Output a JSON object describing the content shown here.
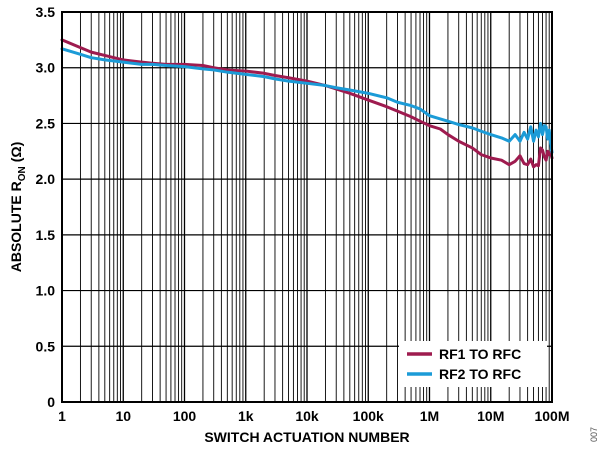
{
  "chart_data": {
    "type": "line",
    "title": "",
    "xlabel": "SWITCH ACTUATION NUMBER",
    "ylabel_main": "ABSOLUTE R",
    "ylabel_sub": "ON",
    "ylabel_unit": "(Ω)",
    "x_scale": "log",
    "xlim": [
      1,
      100000000
    ],
    "ylim": [
      0,
      3.5
    ],
    "grid": true,
    "legend_position": "bottom-right",
    "x_ticks": [
      {
        "value": 1,
        "label": "1"
      },
      {
        "value": 10,
        "label": "10"
      },
      {
        "value": 100,
        "label": "100"
      },
      {
        "value": 1000,
        "label": "1k"
      },
      {
        "value": 10000,
        "label": "10k"
      },
      {
        "value": 100000,
        "label": "100k"
      },
      {
        "value": 1000000,
        "label": "1M"
      },
      {
        "value": 10000000,
        "label": "10M"
      },
      {
        "value": 100000000,
        "label": "100M"
      }
    ],
    "y_ticks": [
      {
        "value": 0,
        "label": "0"
      },
      {
        "value": 0.5,
        "label": "0.5"
      },
      {
        "value": 1.0,
        "label": "1.0"
      },
      {
        "value": 1.5,
        "label": "1.5"
      },
      {
        "value": 2.0,
        "label": "2.0"
      },
      {
        "value": 2.5,
        "label": "2.5"
      },
      {
        "value": 3.0,
        "label": "3.0"
      },
      {
        "value": 3.5,
        "label": "3.5"
      }
    ],
    "series": [
      {
        "name": "RF1 TO RFC",
        "color": "#9e1b4f",
        "points": [
          [
            1,
            3.25
          ],
          [
            2,
            3.18
          ],
          [
            3,
            3.14
          ],
          [
            5,
            3.11
          ],
          [
            10,
            3.07
          ],
          [
            20,
            3.05
          ],
          [
            30,
            3.04
          ],
          [
            50,
            3.03
          ],
          [
            100,
            3.03
          ],
          [
            200,
            3.02
          ],
          [
            300,
            3.0
          ],
          [
            500,
            2.98
          ],
          [
            1000,
            2.97
          ],
          [
            2000,
            2.95
          ],
          [
            3000,
            2.93
          ],
          [
            5000,
            2.91
          ],
          [
            10000,
            2.88
          ],
          [
            20000,
            2.84
          ],
          [
            30000,
            2.81
          ],
          [
            50000,
            2.77
          ],
          [
            100000,
            2.71
          ],
          [
            200000,
            2.65
          ],
          [
            300000,
            2.61
          ],
          [
            500000,
            2.56
          ],
          [
            700000,
            2.52
          ],
          [
            1000000,
            2.48
          ],
          [
            1500000,
            2.45
          ],
          [
            2000000,
            2.4
          ],
          [
            3000000,
            2.34
          ],
          [
            5000000,
            2.28
          ],
          [
            7000000,
            2.22
          ],
          [
            10000000,
            2.19
          ],
          [
            15000000,
            2.17
          ],
          [
            20000000,
            2.13
          ],
          [
            25000000,
            2.16
          ],
          [
            30000000,
            2.21
          ],
          [
            35000000,
            2.14
          ],
          [
            40000000,
            2.13
          ],
          [
            45000000,
            2.18
          ],
          [
            50000000,
            2.11
          ],
          [
            55000000,
            2.13
          ],
          [
            60000000,
            2.12
          ],
          [
            65000000,
            2.28
          ],
          [
            70000000,
            2.26
          ],
          [
            75000000,
            2.2
          ],
          [
            80000000,
            2.17
          ],
          [
            85000000,
            2.25
          ],
          [
            90000000,
            2.22
          ],
          [
            95000000,
            2.24
          ],
          [
            100000000,
            2.19
          ]
        ]
      },
      {
        "name": "RF2 TO RFC",
        "color": "#1b9bd7",
        "points": [
          [
            1,
            3.17
          ],
          [
            2,
            3.12
          ],
          [
            3,
            3.09
          ],
          [
            5,
            3.07
          ],
          [
            10,
            3.05
          ],
          [
            20,
            3.03
          ],
          [
            30,
            3.03
          ],
          [
            50,
            3.02
          ],
          [
            100,
            3.01
          ],
          [
            200,
            2.99
          ],
          [
            300,
            2.98
          ],
          [
            500,
            2.96
          ],
          [
            1000,
            2.94
          ],
          [
            2000,
            2.92
          ],
          [
            3000,
            2.9
          ],
          [
            5000,
            2.88
          ],
          [
            10000,
            2.86
          ],
          [
            20000,
            2.84
          ],
          [
            30000,
            2.82
          ],
          [
            50000,
            2.8
          ],
          [
            100000,
            2.77
          ],
          [
            200000,
            2.73
          ],
          [
            300000,
            2.69
          ],
          [
            500000,
            2.66
          ],
          [
            700000,
            2.63
          ],
          [
            1000000,
            2.57
          ],
          [
            1500000,
            2.54
          ],
          [
            2000000,
            2.52
          ],
          [
            3000000,
            2.49
          ],
          [
            5000000,
            2.46
          ],
          [
            7000000,
            2.43
          ],
          [
            10000000,
            2.4
          ],
          [
            15000000,
            2.37
          ],
          [
            20000000,
            2.34
          ],
          [
            25000000,
            2.4
          ],
          [
            30000000,
            2.34
          ],
          [
            35000000,
            2.42
          ],
          [
            40000000,
            2.36
          ],
          [
            45000000,
            2.47
          ],
          [
            50000000,
            2.34
          ],
          [
            55000000,
            2.44
          ],
          [
            60000000,
            2.38
          ],
          [
            65000000,
            2.5
          ],
          [
            70000000,
            2.4
          ],
          [
            75000000,
            2.48
          ],
          [
            80000000,
            2.47
          ],
          [
            85000000,
            2.36
          ],
          [
            90000000,
            2.44
          ],
          [
            95000000,
            2.32
          ],
          [
            100000000,
            2.24
          ]
        ]
      }
    ]
  },
  "figure_id": "007"
}
